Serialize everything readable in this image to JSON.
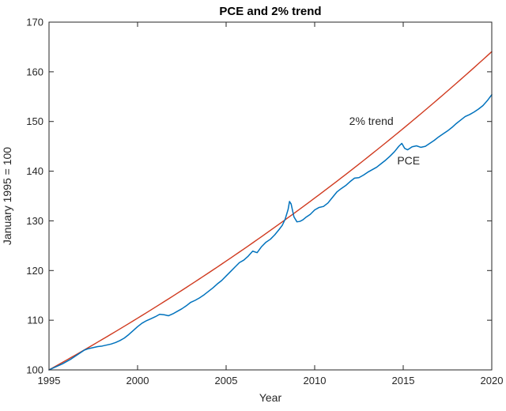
{
  "figure": {
    "background": "#ffffff",
    "axes_color": "#262626"
  },
  "chart_data": {
    "type": "line",
    "title": "PCE and 2% trend",
    "xlabel": "Year",
    "ylabel": "January 1995 = 100",
    "xlim": [
      1995,
      2020
    ],
    "ylim": [
      100,
      170
    ],
    "xticks": [
      1995,
      2000,
      2005,
      2010,
      2015,
      2020
    ],
    "yticks": [
      100,
      110,
      120,
      130,
      140,
      150,
      160,
      170
    ],
    "grid": false,
    "legend_position": "none",
    "series": [
      {
        "name": "2% trend",
        "color": "#d03a1f",
        "line_width": 1.4,
        "model": {
          "kind": "exponential",
          "base": 100,
          "annual_rate": 0.02,
          "t0": 1995,
          "t1": 2020,
          "step": 0.25
        }
      },
      {
        "name": "PCE",
        "color": "#0072bd",
        "line_width": 1.5,
        "x": [
          1995.0,
          1995.25,
          1995.5,
          1995.75,
          1996.0,
          1996.25,
          1996.5,
          1996.75,
          1997.0,
          1997.25,
          1997.5,
          1997.75,
          1998.0,
          1998.25,
          1998.5,
          1998.75,
          1999.0,
          1999.25,
          1999.5,
          1999.75,
          2000.0,
          2000.25,
          2000.5,
          2000.75,
          2001.0,
          2001.25,
          2001.5,
          2001.75,
          2002.0,
          2002.25,
          2002.5,
          2002.75,
          2003.0,
          2003.25,
          2003.5,
          2003.75,
          2004.0,
          2004.25,
          2004.5,
          2004.75,
          2005.0,
          2005.25,
          2005.5,
          2005.75,
          2006.0,
          2006.25,
          2006.5,
          2006.75,
          2007.0,
          2007.25,
          2007.5,
          2007.75,
          2008.0,
          2008.17,
          2008.33,
          2008.5,
          2008.58,
          2008.67,
          2008.75,
          2008.83,
          2009.0,
          2009.17,
          2009.33,
          2009.5,
          2009.75,
          2010.0,
          2010.25,
          2010.5,
          2010.75,
          2011.0,
          2011.25,
          2011.5,
          2011.75,
          2012.0,
          2012.25,
          2012.5,
          2012.75,
          2013.0,
          2013.25,
          2013.5,
          2013.75,
          2014.0,
          2014.25,
          2014.5,
          2014.75,
          2014.92,
          2015.08,
          2015.25,
          2015.5,
          2015.75,
          2016.0,
          2016.25,
          2016.5,
          2016.75,
          2017.0,
          2017.25,
          2017.5,
          2017.75,
          2018.0,
          2018.25,
          2018.5,
          2018.75,
          2019.0,
          2019.25,
          2019.5,
          2019.75,
          2020.0
        ],
        "y": [
          100.0,
          100.4,
          100.8,
          101.2,
          101.7,
          102.2,
          102.8,
          103.4,
          104.0,
          104.3,
          104.5,
          104.7,
          104.8,
          105.0,
          105.2,
          105.5,
          105.9,
          106.4,
          107.1,
          107.9,
          108.7,
          109.4,
          109.9,
          110.3,
          110.7,
          111.2,
          111.1,
          110.9,
          111.3,
          111.8,
          112.3,
          112.9,
          113.6,
          114.0,
          114.5,
          115.1,
          115.8,
          116.5,
          117.3,
          118.0,
          118.9,
          119.8,
          120.7,
          121.6,
          122.1,
          122.9,
          123.9,
          123.6,
          124.8,
          125.7,
          126.3,
          127.2,
          128.3,
          129.1,
          130.3,
          132.3,
          133.9,
          133.4,
          132.1,
          130.8,
          129.8,
          129.9,
          130.2,
          130.7,
          131.3,
          132.2,
          132.7,
          132.9,
          133.6,
          134.7,
          135.8,
          136.5,
          137.1,
          137.9,
          138.6,
          138.7,
          139.2,
          139.8,
          140.3,
          140.8,
          141.5,
          142.2,
          143.0,
          143.9,
          145.0,
          145.6,
          144.6,
          144.3,
          144.9,
          145.1,
          144.8,
          145.0,
          145.6,
          146.2,
          146.9,
          147.5,
          148.1,
          148.8,
          149.6,
          150.3,
          151.0,
          151.4,
          151.9,
          152.5,
          153.2,
          154.2,
          155.4
        ]
      }
    ],
    "annotations": [
      {
        "text": "2% trend",
        "x": 2013.2,
        "y": 149.3
      },
      {
        "text": "PCE",
        "x": 2015.3,
        "y": 141.4
      }
    ]
  }
}
